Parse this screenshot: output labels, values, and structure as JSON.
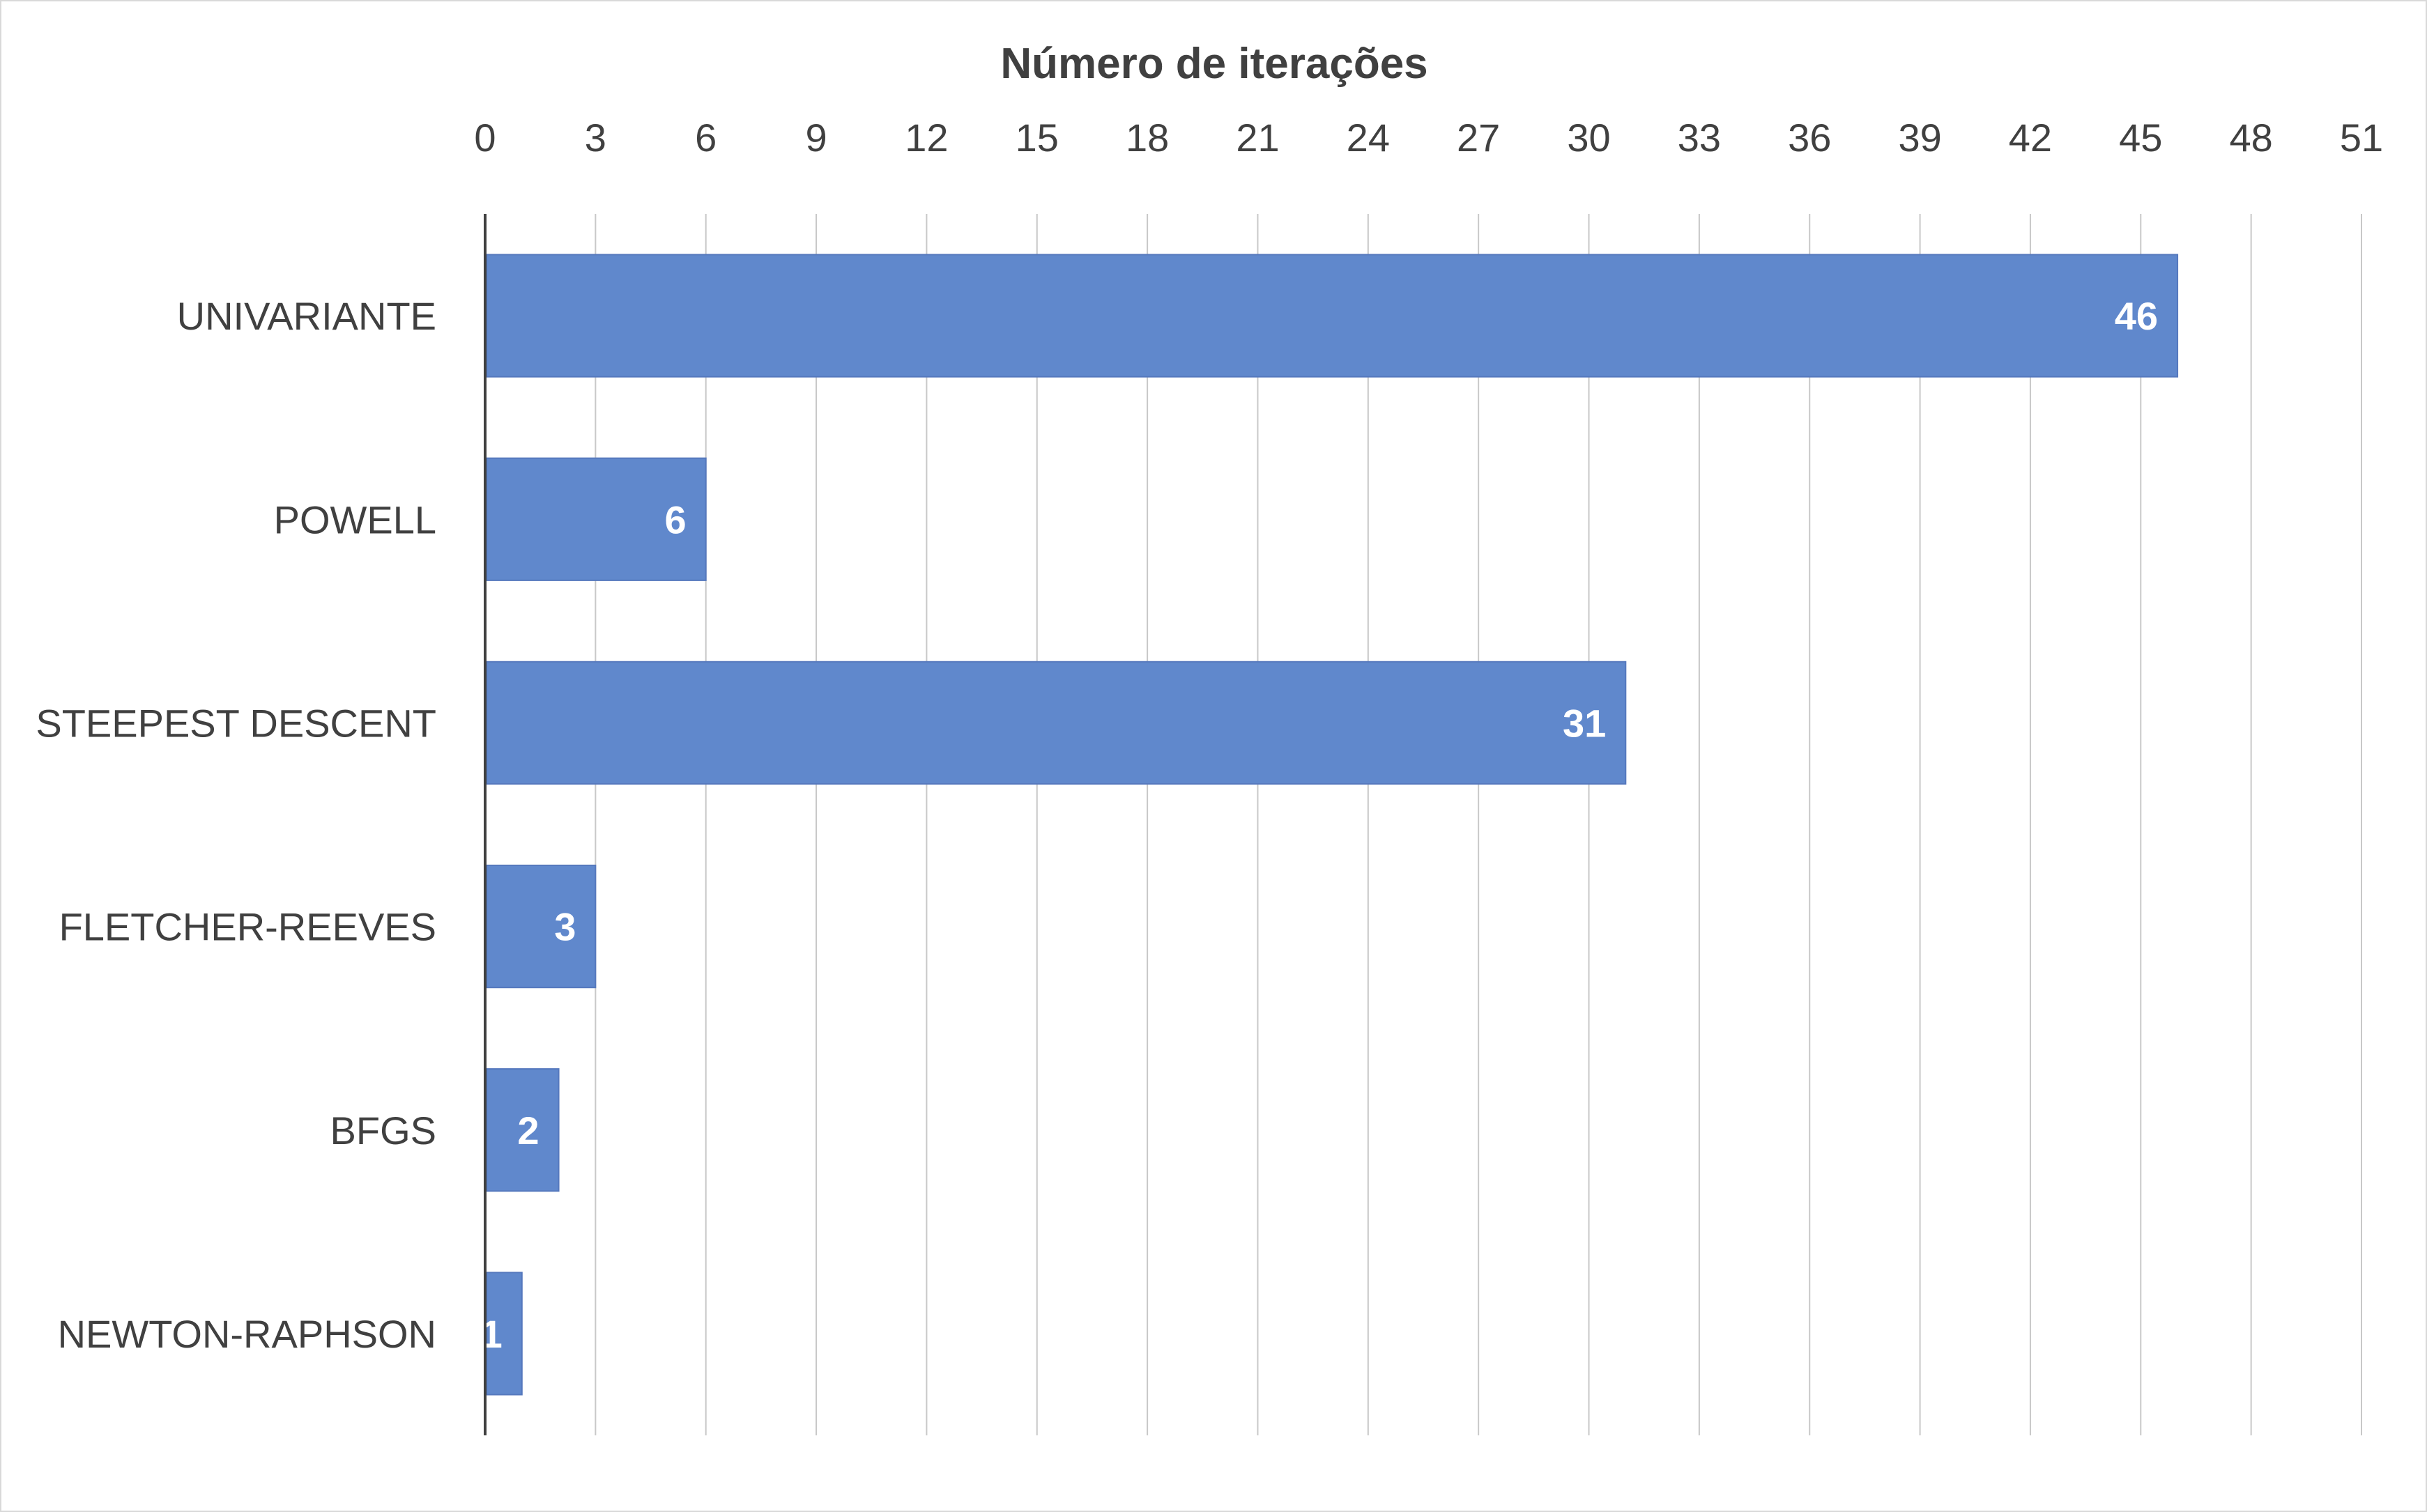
{
  "chart_data": {
    "type": "bar",
    "orientation": "horizontal",
    "title": "",
    "xlabel": "Número de iterações",
    "ylabel": "",
    "categories": [
      "UNIVARIANTE",
      "POWELL",
      "STEEPEST DESCENT",
      "FLETCHER-REEVES",
      "BFGS",
      "NEWTON-RAPHSON"
    ],
    "values": [
      46,
      6,
      31,
      3,
      2,
      1
    ],
    "xlim": [
      0,
      51
    ],
    "x_ticks": [
      0,
      3,
      6,
      9,
      12,
      15,
      18,
      21,
      24,
      27,
      30,
      33,
      36,
      39,
      42,
      45,
      48,
      51
    ],
    "x_axis_position": "top",
    "grid": true,
    "legend": "none",
    "data_labels": true,
    "colors": {
      "bar": "#6088cc",
      "bar_edge": "#5578bd",
      "grid": "#c8c8c8",
      "axis": "#404040",
      "text": "#404040",
      "data_label": "#ffffff"
    }
  }
}
